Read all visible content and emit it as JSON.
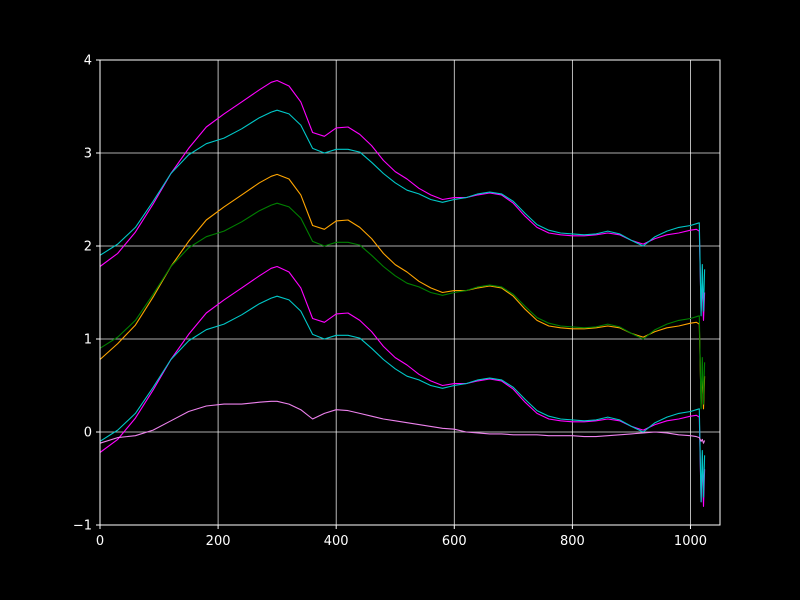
{
  "chart_data": {
    "type": "line",
    "title": "",
    "xlabel": "",
    "ylabel": "",
    "xlim": [
      0,
      1050
    ],
    "ylim": [
      -1,
      4
    ],
    "grid": true,
    "background": "#000000",
    "axis_color": "#ffffff",
    "x_ticks": [
      0,
      200,
      400,
      600,
      800,
      1000
    ],
    "y_ticks": [
      -1,
      0,
      1,
      2,
      3,
      4
    ],
    "x_tick_labels": [
      "0",
      "200",
      "400",
      "600",
      "800",
      "1000"
    ],
    "y_tick_labels": [
      "−1",
      "0",
      "1",
      "2",
      "3",
      "4"
    ],
    "series": [
      {
        "color": "#ff00ff",
        "x": [
          0,
          30,
          60,
          90,
          120,
          150,
          180,
          210,
          240,
          270,
          290,
          300,
          320,
          340,
          360,
          380,
          400,
          420,
          440,
          460,
          480,
          500,
          520,
          540,
          560,
          580,
          600,
          620,
          640,
          660,
          680,
          700,
          720,
          740,
          760,
          780,
          800,
          820,
          840,
          860,
          880,
          900,
          920,
          940,
          960,
          980,
          1000,
          1010,
          1015,
          1018,
          1020,
          1022,
          1024
        ],
        "y": [
          1.78,
          1.92,
          2.15,
          2.45,
          2.78,
          3.05,
          3.28,
          3.42,
          3.55,
          3.68,
          3.76,
          3.78,
          3.72,
          3.55,
          3.22,
          3.18,
          3.27,
          3.28,
          3.2,
          3.08,
          2.92,
          2.8,
          2.72,
          2.62,
          2.55,
          2.5,
          2.52,
          2.52,
          2.55,
          2.57,
          2.55,
          2.46,
          2.32,
          2.2,
          2.14,
          2.12,
          2.11,
          2.11,
          2.12,
          2.14,
          2.12,
          2.06,
          2.02,
          2.08,
          2.12,
          2.14,
          2.17,
          2.18,
          2.16,
          1.3,
          1.6,
          1.2,
          1.5
        ]
      },
      {
        "color": "#00c8c8",
        "x": [
          0,
          30,
          60,
          90,
          120,
          150,
          180,
          210,
          240,
          270,
          290,
          300,
          320,
          340,
          360,
          380,
          400,
          420,
          440,
          460,
          480,
          500,
          520,
          540,
          560,
          580,
          600,
          620,
          640,
          660,
          680,
          700,
          720,
          740,
          760,
          780,
          800,
          820,
          840,
          860,
          880,
          900,
          920,
          940,
          960,
          980,
          1000,
          1010,
          1015,
          1018,
          1020,
          1022,
          1024
        ],
        "y": [
          1.9,
          2.02,
          2.2,
          2.48,
          2.78,
          2.98,
          3.1,
          3.16,
          3.26,
          3.38,
          3.44,
          3.46,
          3.42,
          3.3,
          3.05,
          3.0,
          3.04,
          3.04,
          3.01,
          2.9,
          2.78,
          2.68,
          2.6,
          2.56,
          2.5,
          2.47,
          2.5,
          2.52,
          2.56,
          2.58,
          2.56,
          2.48,
          2.35,
          2.23,
          2.17,
          2.14,
          2.13,
          2.12,
          2.13,
          2.16,
          2.13,
          2.06,
          2.0,
          2.1,
          2.16,
          2.2,
          2.22,
          2.24,
          2.25,
          1.25,
          1.8,
          1.3,
          1.75
        ]
      },
      {
        "color": "#ffa500",
        "x": [
          0,
          30,
          60,
          90,
          120,
          150,
          180,
          210,
          240,
          270,
          290,
          300,
          320,
          340,
          360,
          380,
          400,
          420,
          440,
          460,
          480,
          500,
          520,
          540,
          560,
          580,
          600,
          620,
          640,
          660,
          680,
          700,
          720,
          740,
          760,
          780,
          800,
          820,
          840,
          860,
          880,
          900,
          920,
          940,
          960,
          980,
          1000,
          1010,
          1015,
          1018,
          1020,
          1022,
          1024
        ],
        "y": [
          0.78,
          0.95,
          1.15,
          1.45,
          1.78,
          2.05,
          2.28,
          2.42,
          2.55,
          2.68,
          2.75,
          2.77,
          2.72,
          2.55,
          2.22,
          2.18,
          2.27,
          2.28,
          2.2,
          2.08,
          1.92,
          1.8,
          1.72,
          1.62,
          1.55,
          1.5,
          1.52,
          1.52,
          1.55,
          1.57,
          1.55,
          1.46,
          1.32,
          1.2,
          1.14,
          1.12,
          1.11,
          1.11,
          1.12,
          1.14,
          1.12,
          1.06,
          1.02,
          1.08,
          1.12,
          1.14,
          1.17,
          1.18,
          1.16,
          0.3,
          0.65,
          0.25,
          0.6
        ]
      },
      {
        "color": "#008000",
        "x": [
          0,
          30,
          60,
          90,
          120,
          150,
          180,
          210,
          240,
          270,
          290,
          300,
          320,
          340,
          360,
          380,
          400,
          420,
          440,
          460,
          480,
          500,
          520,
          540,
          560,
          580,
          600,
          620,
          640,
          660,
          680,
          700,
          720,
          740,
          760,
          780,
          800,
          820,
          840,
          860,
          880,
          900,
          920,
          940,
          960,
          980,
          1000,
          1010,
          1015,
          1018,
          1020,
          1022,
          1024
        ],
        "y": [
          0.9,
          1.02,
          1.2,
          1.48,
          1.78,
          1.98,
          2.1,
          2.16,
          2.26,
          2.38,
          2.44,
          2.46,
          2.42,
          2.3,
          2.05,
          2.0,
          2.04,
          2.04,
          2.01,
          1.9,
          1.78,
          1.68,
          1.6,
          1.56,
          1.5,
          1.47,
          1.5,
          1.52,
          1.56,
          1.58,
          1.56,
          1.48,
          1.35,
          1.23,
          1.17,
          1.14,
          1.13,
          1.12,
          1.13,
          1.16,
          1.13,
          1.06,
          1.0,
          1.1,
          1.16,
          1.2,
          1.22,
          1.24,
          1.25,
          0.25,
          0.8,
          0.3,
          0.75
        ]
      },
      {
        "color": "#ff00ff",
        "x": [
          0,
          30,
          60,
          90,
          120,
          150,
          180,
          210,
          240,
          270,
          290,
          300,
          320,
          340,
          360,
          380,
          400,
          420,
          440,
          460,
          480,
          500,
          520,
          540,
          560,
          580,
          600,
          620,
          640,
          660,
          680,
          700,
          720,
          740,
          760,
          780,
          800,
          820,
          840,
          860,
          880,
          900,
          920,
          940,
          960,
          980,
          1000,
          1010,
          1015,
          1018,
          1020,
          1022,
          1024
        ],
        "y": [
          -0.22,
          -0.08,
          0.15,
          0.45,
          0.78,
          1.05,
          1.28,
          1.42,
          1.55,
          1.68,
          1.76,
          1.78,
          1.72,
          1.55,
          1.22,
          1.18,
          1.27,
          1.28,
          1.2,
          1.08,
          0.92,
          0.8,
          0.72,
          0.62,
          0.55,
          0.5,
          0.52,
          0.52,
          0.55,
          0.57,
          0.55,
          0.46,
          0.32,
          0.2,
          0.14,
          0.12,
          0.11,
          0.11,
          0.12,
          0.14,
          0.12,
          0.06,
          0.02,
          0.08,
          0.12,
          0.14,
          0.17,
          0.18,
          0.16,
          -0.75,
          -0.3,
          -0.8,
          -0.4
        ]
      },
      {
        "color": "#00c8c8",
        "x": [
          0,
          30,
          60,
          90,
          120,
          150,
          180,
          210,
          240,
          270,
          290,
          300,
          320,
          340,
          360,
          380,
          400,
          420,
          440,
          460,
          480,
          500,
          520,
          540,
          560,
          580,
          600,
          620,
          640,
          660,
          680,
          700,
          720,
          740,
          760,
          780,
          800,
          820,
          840,
          860,
          880,
          900,
          920,
          940,
          960,
          980,
          1000,
          1010,
          1015,
          1018,
          1020,
          1022,
          1024
        ],
        "y": [
          -0.1,
          0.02,
          0.2,
          0.48,
          0.78,
          0.98,
          1.1,
          1.16,
          1.26,
          1.38,
          1.44,
          1.46,
          1.42,
          1.3,
          1.05,
          1.0,
          1.04,
          1.04,
          1.01,
          0.9,
          0.78,
          0.68,
          0.6,
          0.56,
          0.5,
          0.47,
          0.5,
          0.52,
          0.56,
          0.58,
          0.56,
          0.48,
          0.35,
          0.23,
          0.17,
          0.14,
          0.13,
          0.12,
          0.13,
          0.16,
          0.13,
          0.06,
          0.0,
          0.1,
          0.16,
          0.2,
          0.22,
          0.24,
          0.25,
          -0.75,
          -0.2,
          -0.7,
          -0.25
        ]
      },
      {
        "color": "#ee82ee",
        "x": [
          0,
          30,
          60,
          90,
          120,
          150,
          180,
          210,
          240,
          270,
          290,
          300,
          320,
          340,
          360,
          380,
          400,
          420,
          440,
          460,
          480,
          500,
          520,
          540,
          560,
          580,
          600,
          620,
          640,
          660,
          680,
          700,
          720,
          740,
          760,
          780,
          800,
          820,
          840,
          860,
          880,
          900,
          920,
          940,
          960,
          980,
          1000,
          1010,
          1015,
          1018,
          1020,
          1022,
          1024
        ],
        "y": [
          -0.12,
          -0.06,
          -0.04,
          0.02,
          0.12,
          0.22,
          0.28,
          0.3,
          0.3,
          0.32,
          0.33,
          0.33,
          0.3,
          0.24,
          0.14,
          0.2,
          0.24,
          0.23,
          0.2,
          0.17,
          0.14,
          0.12,
          0.1,
          0.08,
          0.06,
          0.04,
          0.03,
          0.0,
          -0.01,
          -0.02,
          -0.02,
          -0.03,
          -0.03,
          -0.03,
          -0.04,
          -0.04,
          -0.04,
          -0.05,
          -0.05,
          -0.04,
          -0.03,
          -0.02,
          -0.01,
          0.0,
          -0.01,
          -0.03,
          -0.04,
          -0.05,
          -0.06,
          -0.1,
          -0.08,
          -0.12,
          -0.09
        ]
      }
    ]
  }
}
